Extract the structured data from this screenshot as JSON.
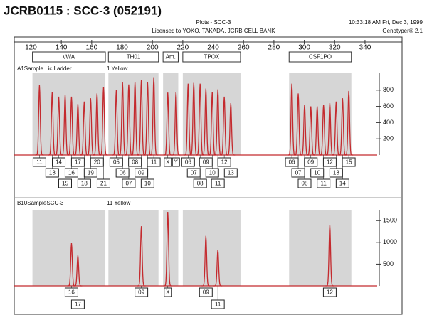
{
  "header": {
    "title": "JCRB0115 : SCC-3 (052191)",
    "window": "Plots - SCC-3",
    "license": "Licensed to YOKO, TAKADA, JCRB CELL BANK",
    "timestamp": "10:33:18 AM  Fri, Dec 3, 1999",
    "version": "Genotyper® 2.1"
  },
  "chart_data": {
    "type": "electropherogram",
    "xlim": [
      109,
      348
    ],
    "xticks": [
      120,
      140,
      160,
      180,
      200,
      220,
      240,
      260,
      280,
      300,
      320,
      340
    ],
    "loci": [
      {
        "name": "vWA",
        "range": [
          121,
          169
        ]
      },
      {
        "name": "TH01",
        "range": [
          171,
          204
        ]
      },
      {
        "name": "Am.",
        "range": [
          207,
          217
        ]
      },
      {
        "name": "TPOX",
        "range": [
          220,
          258
        ]
      },
      {
        "name": "CSF1PO",
        "range": [
          290,
          331
        ]
      }
    ],
    "panels": [
      {
        "label": "A1Sample...ic Ladder",
        "dye": "1 Yellow",
        "color": "#c42a2e",
        "ylim": [
          0,
          1000
        ],
        "yticks": [
          200,
          400,
          600,
          800
        ],
        "alleles": [
          "11",
          "13",
          "14",
          "15",
          "16",
          "17",
          "18",
          "19",
          "20",
          "21",
          "05",
          "06",
          "07",
          "08",
          "09",
          "10",
          "11",
          "X",
          "Y",
          "06",
          "07",
          "08",
          "09",
          "10",
          "11",
          "12",
          "13",
          "06",
          "07",
          "08",
          "09",
          "10",
          "11",
          "12",
          "13",
          "14",
          "15"
        ],
        "x": [
          125.6,
          134.0,
          138.3,
          142.5,
          146.7,
          150.9,
          155.1,
          159.3,
          163.5,
          167.8,
          176.2,
          180.3,
          184.4,
          188.5,
          192.7,
          196.8,
          200.9,
          210.1,
          215.5,
          223.5,
          227.2,
          231.4,
          235.2,
          239.4,
          243.1,
          247.3,
          251.6,
          291.8,
          296.0,
          300.2,
          304.3,
          308.5,
          312.7,
          316.8,
          321.0,
          325.2,
          329.3
        ],
        "values": [
          860,
          780,
          720,
          740,
          720,
          630,
          660,
          700,
          760,
          840,
          800,
          900,
          870,
          900,
          930,
          900,
          960,
          770,
          780,
          880,
          890,
          880,
          820,
          780,
          810,
          720,
          640,
          880,
          760,
          620,
          600,
          600,
          620,
          640,
          660,
          700,
          790
        ]
      },
      {
        "label": "B10SampleSCC-3",
        "dye": "11 Yellow",
        "color": "#c42a2e",
        "ylim": [
          0,
          1700
        ],
        "yticks": [
          500,
          1000,
          1500
        ],
        "alleles": [
          "16",
          "17",
          "09",
          "X",
          "09",
          "11",
          "12"
        ],
        "x": [
          146.7,
          150.9,
          192.7,
          210.1,
          235.2,
          243.1,
          316.8
        ],
        "values": [
          980,
          700,
          1370,
          1700,
          1150,
          830,
          1400
        ]
      }
    ]
  }
}
